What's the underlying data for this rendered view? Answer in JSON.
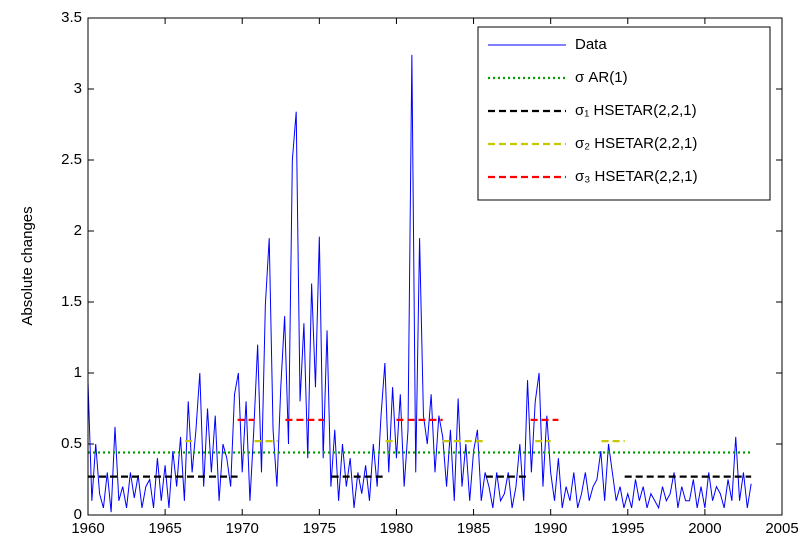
{
  "chart_data": {
    "type": "line",
    "ylabel": "Absolute changes",
    "xlim": [
      1960,
      2005
    ],
    "xticks": [
      1960,
      1965,
      1970,
      1975,
      1980,
      1985,
      1990,
      1995,
      2000,
      2005
    ],
    "ylim": [
      0,
      3.5
    ],
    "yticks": [
      0,
      0.5,
      1,
      1.5,
      2,
      2.5,
      3,
      3.5
    ],
    "grid": false,
    "legend": "upper right",
    "series": [
      {
        "name": "Data",
        "color": "#0000ff",
        "style": "solid",
        "x": [
          1960,
          1960.25,
          1960.5,
          1960.75,
          1961,
          1961.25,
          1961.5,
          1961.75,
          1962,
          1962.25,
          1962.5,
          1962.75,
          1963,
          1963.25,
          1963.5,
          1963.75,
          1964,
          1964.25,
          1964.5,
          1964.75,
          1965,
          1965.25,
          1965.5,
          1965.75,
          1966,
          1966.25,
          1966.5,
          1966.75,
          1967,
          1967.25,
          1967.5,
          1967.75,
          1968,
          1968.25,
          1968.5,
          1968.75,
          1969,
          1969.25,
          1969.5,
          1969.75,
          1970,
          1970.25,
          1970.5,
          1970.75,
          1971,
          1971.25,
          1971.5,
          1971.75,
          1972,
          1972.25,
          1972.5,
          1972.75,
          1973,
          1973.25,
          1973.5,
          1973.75,
          1974,
          1974.25,
          1974.5,
          1974.75,
          1975,
          1975.25,
          1975.5,
          1975.75,
          1976,
          1976.25,
          1976.5,
          1976.75,
          1977,
          1977.25,
          1977.5,
          1977.75,
          1978,
          1978.25,
          1978.5,
          1978.75,
          1979,
          1979.25,
          1979.5,
          1979.75,
          1980,
          1980.25,
          1980.5,
          1980.75,
          1981,
          1981.25,
          1981.5,
          1981.75,
          1982,
          1982.25,
          1982.5,
          1982.75,
          1983,
          1983.25,
          1983.5,
          1983.75,
          1984,
          1984.25,
          1984.5,
          1984.75,
          1985,
          1985.25,
          1985.5,
          1985.75,
          1986,
          1986.25,
          1986.5,
          1986.75,
          1987,
          1987.25,
          1987.5,
          1987.75,
          1988,
          1988.25,
          1988.5,
          1988.75,
          1989,
          1989.25,
          1989.5,
          1989.75,
          1990,
          1990.25,
          1990.5,
          1990.75,
          1991,
          1991.25,
          1991.5,
          1991.75,
          1992,
          1992.25,
          1992.5,
          1992.75,
          1993,
          1993.25,
          1993.5,
          1993.75,
          1994,
          1994.25,
          1994.5,
          1994.75,
          1995,
          1995.25,
          1995.5,
          1995.75,
          1996,
          1996.25,
          1996.5,
          1996.75,
          1997,
          1997.25,
          1997.5,
          1997.75,
          1998,
          1998.25,
          1998.5,
          1998.75,
          1999,
          1999.25,
          1999.5,
          1999.75,
          2000,
          2000.25,
          2000.5,
          2000.75,
          2001,
          2001.25,
          2001.5,
          2001.75,
          2002,
          2002.25,
          2002.5,
          2002.75,
          2003
        ],
        "values": [
          0.94,
          0.1,
          0.5,
          0.15,
          0.05,
          0.3,
          0.02,
          0.62,
          0.1,
          0.2,
          0.05,
          0.3,
          0.12,
          0.28,
          0.05,
          0.2,
          0.25,
          0.05,
          0.4,
          0.1,
          0.35,
          0.05,
          0.45,
          0.2,
          0.55,
          0.1,
          0.8,
          0.3,
          0.6,
          1.0,
          0.2,
          0.75,
          0.3,
          0.7,
          0.1,
          0.5,
          0.4,
          0.2,
          0.85,
          1.0,
          0.3,
          0.8,
          0.1,
          0.6,
          1.2,
          0.3,
          1.48,
          1.95,
          0.6,
          0.2,
          0.9,
          1.4,
          0.5,
          2.5,
          2.84,
          0.8,
          1.35,
          0.4,
          1.63,
          0.9,
          1.96,
          0.4,
          1.3,
          0.2,
          0.6,
          0.1,
          0.5,
          0.2,
          0.4,
          0.05,
          0.3,
          0.15,
          0.35,
          0.1,
          0.5,
          0.2,
          0.7,
          1.07,
          0.3,
          0.9,
          0.4,
          0.85,
          0.2,
          0.6,
          3.24,
          0.3,
          1.95,
          0.7,
          0.5,
          0.85,
          0.3,
          0.7,
          0.55,
          0.2,
          0.6,
          0.1,
          0.82,
          0.2,
          0.5,
          0.1,
          0.45,
          0.6,
          0.1,
          0.3,
          0.2,
          0.05,
          0.3,
          0.1,
          0.15,
          0.3,
          0.05,
          0.2,
          0.5,
          0.1,
          0.95,
          0.3,
          0.8,
          1.0,
          0.2,
          0.7,
          0.3,
          0.1,
          0.4,
          0.05,
          0.2,
          0.1,
          0.3,
          0.05,
          0.15,
          0.3,
          0.1,
          0.2,
          0.25,
          0.45,
          0.1,
          0.5,
          0.3,
          0.1,
          0.2,
          0.05,
          0.15,
          0.05,
          0.25,
          0.1,
          0.2,
          0.05,
          0.15,
          0.1,
          0.05,
          0.2,
          0.1,
          0.15,
          0.3,
          0.05,
          0.2,
          0.1,
          0.1,
          0.25,
          0.05,
          0.2,
          0.05,
          0.3,
          0.1,
          0.2,
          0.15,
          0.05,
          0.25,
          0.1,
          0.55,
          0.1,
          0.3,
          0.05,
          0.22
        ]
      },
      {
        "name": "σ AR(1)",
        "color": "#00a000",
        "style": "dotted",
        "x": [
          1960,
          2003
        ],
        "values": [
          0.44,
          0.44
        ]
      },
      {
        "name": "σ₁ HSETAR(2,2,1)",
        "color": "#000000",
        "style": "dashed",
        "x": [
          1960,
          1969.7,
          null,
          1975.8,
          1979.3,
          null,
          1985.8,
          1988.5,
          null,
          1994.8,
          2003
        ],
        "values": [
          0.27,
          0.27,
          null,
          0.27,
          0.27,
          null,
          0.27,
          0.27,
          null,
          0.27,
          0.27
        ]
      },
      {
        "name": "σ₂ HSETAR(2,2,1)",
        "color": "#c8c800",
        "style": "dashed",
        "x": [
          1966.3,
          1967,
          null,
          1970.8,
          1972.3,
          null,
          1979.3,
          1980,
          null,
          1983,
          1985.8,
          null,
          1989,
          1990,
          null,
          1993.3,
          1994.8
        ],
        "values": [
          0.52,
          0.52,
          null,
          0.52,
          0.52,
          null,
          0.52,
          0.52,
          null,
          0.52,
          0.52,
          null,
          0.52,
          0.52,
          null,
          0.52,
          0.52
        ]
      },
      {
        "name": "σ₃ HSETAR(2,2,1)",
        "color": "#ff0000",
        "style": "dashed",
        "x": [
          1969.7,
          1970.8,
          null,
          1972.8,
          1975.3,
          null,
          1980,
          1983,
          null,
          1988.7,
          1990.5
        ],
        "values": [
          0.67,
          0.67,
          null,
          0.67,
          0.67,
          null,
          0.67,
          0.67,
          null,
          0.67,
          0.67
        ]
      }
    ]
  }
}
